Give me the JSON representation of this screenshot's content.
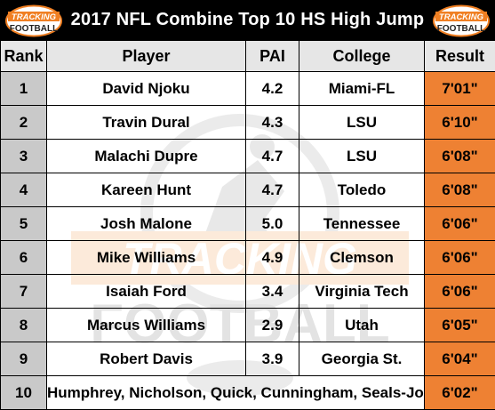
{
  "title": "2017 NFL Combine Top 10 HS High Jump",
  "logo": {
    "line1": "TRACKING",
    "line2": "FOOTBALL"
  },
  "watermark": {
    "line1": "TRACKING",
    "line2": "FOOTBALL"
  },
  "colors": {
    "title_bg": "#000000",
    "header_bg": "#e6e6e6",
    "rank_bg": "#c9c9c9",
    "result_bg": "#ee8133",
    "logo_orange": "#f07f22"
  },
  "columns": {
    "rank": "Rank",
    "player": "Player",
    "pai": "PAI",
    "college": "College",
    "result": "Result"
  },
  "rows": [
    {
      "rank": "1",
      "player": "David Njoku",
      "pai": "4.2",
      "college": "Miami-FL",
      "result": "7'01\""
    },
    {
      "rank": "2",
      "player": "Travin Dural",
      "pai": "4.3",
      "college": "LSU",
      "result": "6'10\""
    },
    {
      "rank": "3",
      "player": "Malachi Dupre",
      "pai": "4.7",
      "college": "LSU",
      "result": "6'08\""
    },
    {
      "rank": "4",
      "player": "Kareen Hunt",
      "pai": "4.7",
      "college": "Toledo",
      "result": "6'08\""
    },
    {
      "rank": "5",
      "player": "Josh Malone",
      "pai": "5.0",
      "college": "Tennessee",
      "result": "6'06\""
    },
    {
      "rank": "6",
      "player": "Mike Williams",
      "pai": "4.9",
      "college": "Clemson",
      "result": "6'06\""
    },
    {
      "rank": "7",
      "player": "Isaiah Ford",
      "pai": "3.4",
      "college": "Virginia Tech",
      "result": "6'06\""
    },
    {
      "rank": "8",
      "player": "Marcus Williams",
      "pai": "2.9",
      "college": "Utah",
      "result": "6'05\""
    },
    {
      "rank": "9",
      "player": "Robert Davis",
      "pai": "3.9",
      "college": "Georgia St.",
      "result": "6'04\""
    }
  ],
  "last_row": {
    "rank": "10",
    "players": "Humphrey, Nicholson, Quick, Cunningham, Seals-Jones",
    "result": "6'02\""
  }
}
